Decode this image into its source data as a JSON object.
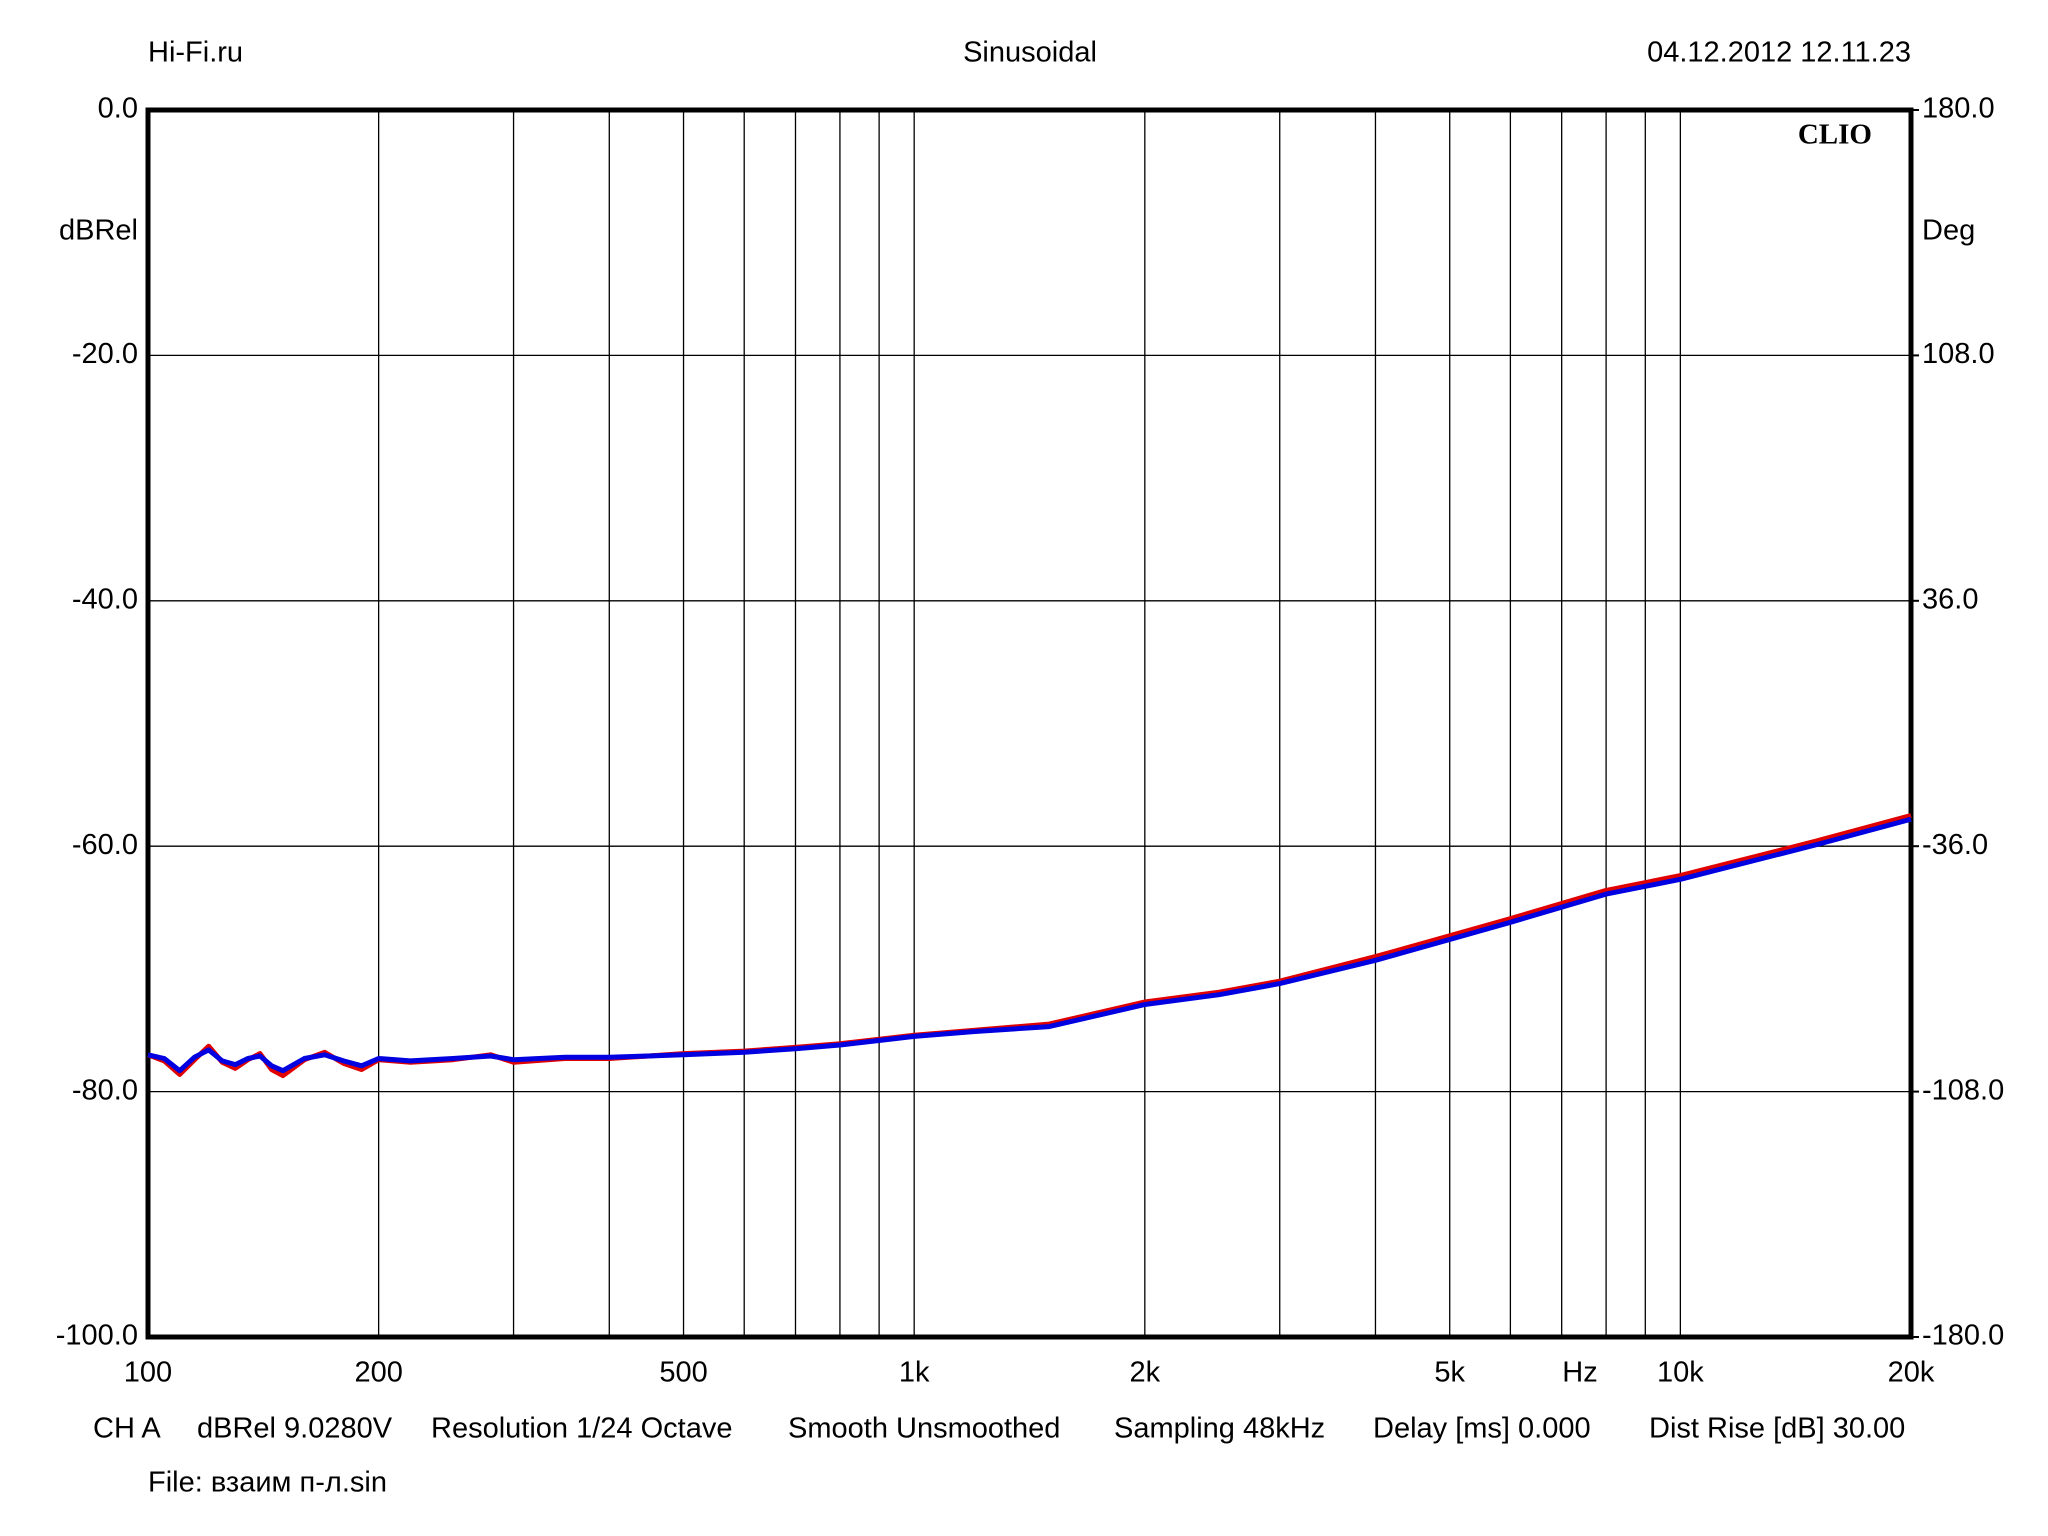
{
  "chart_data": {
    "type": "line",
    "header_left": "Hi-Fi.ru",
    "title": "Sinusoidal",
    "header_right": "04.12.2012 12.11.23",
    "brand": "CLIO",
    "ylabel": "dBRel",
    "y2label": "Deg",
    "xlabel": "Hz",
    "xscale": "log",
    "grid": true,
    "xlim": [
      100,
      20000
    ],
    "ylim": [
      -100,
      0
    ],
    "y2lim": [
      -180,
      180
    ],
    "xticks": [
      100,
      200,
      500,
      {
        "value": 1000,
        "label": "1k"
      },
      {
        "value": 2000,
        "label": "2k"
      },
      {
        "value": 5000,
        "label": "5k"
      },
      {
        "value": 10000,
        "label": "10k"
      },
      {
        "value": 20000,
        "label": "20k"
      }
    ],
    "xgrid": [
      100,
      200,
      300,
      400,
      500,
      600,
      700,
      800,
      900,
      1000,
      2000,
      3000,
      4000,
      5000,
      6000,
      7000,
      8000,
      9000,
      10000,
      20000
    ],
    "yticks": [
      {
        "value": 0,
        "label": "0.0"
      },
      {
        "value": -20,
        "label": "-20.0"
      },
      {
        "value": -40,
        "label": "-40.0"
      },
      {
        "value": -60,
        "label": "-60.0"
      },
      {
        "value": -80,
        "label": "-80.0"
      },
      {
        "value": -100,
        "label": "-100.0"
      }
    ],
    "y2ticks": [
      {
        "value": 180,
        "label": "180.0"
      },
      {
        "value": 108,
        "label": "108.0"
      },
      {
        "value": 36,
        "label": "36.0"
      },
      {
        "value": -36,
        "label": "-36.0"
      },
      {
        "value": -108,
        "label": "-108.0"
      },
      {
        "value": -180,
        "label": "-180.0"
      }
    ],
    "x": [
      100,
      105,
      110,
      115,
      120,
      125,
      130,
      135,
      140,
      145,
      150,
      160,
      170,
      180,
      190,
      200,
      220,
      250,
      280,
      300,
      350,
      400,
      450,
      500,
      600,
      700,
      800,
      1000,
      1200,
      1500,
      2000,
      2500,
      3000,
      4000,
      5000,
      6000,
      8000,
      10000,
      15000,
      20000
    ],
    "series": [
      {
        "name": "CH A L",
        "color": "#e00000",
        "values": [
          -77,
          -77.5,
          -78.6,
          -77.4,
          -76.3,
          -77.6,
          -78.1,
          -77.4,
          -76.9,
          -78.2,
          -78.7,
          -77.4,
          -76.8,
          -77.7,
          -78.2,
          -77.4,
          -77.6,
          -77.4,
          -77,
          -77.6,
          -77.3,
          -77.3,
          -77.1,
          -76.9,
          -76.7,
          -76.4,
          -76.1,
          -75.4,
          -75,
          -74.5,
          -72.7,
          -71.9,
          -71,
          -69,
          -67.3,
          -65.9,
          -63.6,
          -62.4,
          -59.6,
          -57.5
        ]
      },
      {
        "name": "CH A R",
        "color": "#0000e0",
        "values": [
          -77,
          -77.3,
          -78.3,
          -77.2,
          -76.6,
          -77.5,
          -77.8,
          -77.3,
          -77.1,
          -77.9,
          -78.3,
          -77.3,
          -77,
          -77.5,
          -77.9,
          -77.3,
          -77.5,
          -77.3,
          -77.1,
          -77.4,
          -77.2,
          -77.2,
          -77.1,
          -77,
          -76.8,
          -76.5,
          -76.2,
          -75.5,
          -75.1,
          -74.7,
          -72.9,
          -72.1,
          -71.2,
          -69.3,
          -67.6,
          -66.2,
          -63.9,
          -62.7,
          -59.9,
          -57.8
        ]
      }
    ],
    "footer": [
      "CH A",
      "dBRel 9.0280V",
      "Resolution 1/24 Octave",
      "Smooth Unsmoothed",
      "Sampling 48kHz",
      "Delay [ms] 0.000",
      "Dist Rise [dB] 30.00"
    ],
    "file": "File: взаим п-л.sin"
  }
}
